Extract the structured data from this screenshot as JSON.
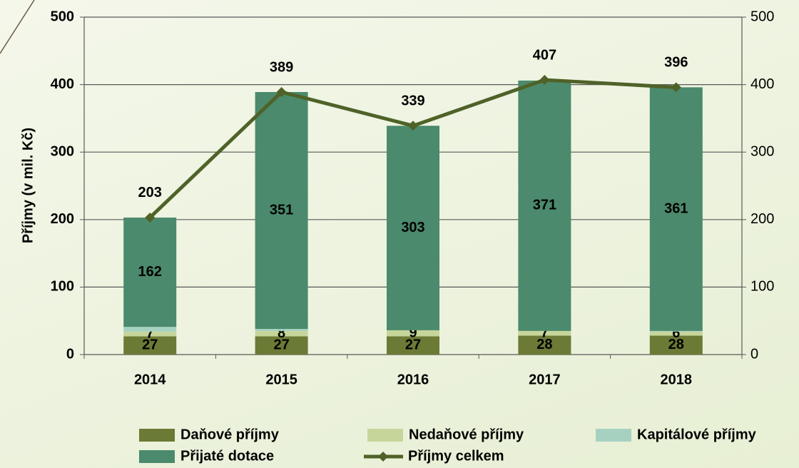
{
  "chart_data": {
    "type": "bar",
    "stacked": true,
    "categories": [
      "2014",
      "2015",
      "2016",
      "2017",
      "2018"
    ],
    "y_axis_label": "Příjmy (v mil. Kč)",
    "ylim": [
      0,
      500
    ],
    "yticks": [
      0,
      100,
      200,
      300,
      400,
      500
    ],
    "y2lim": [
      0,
      500
    ],
    "y2ticks": [
      0,
      100,
      200,
      300,
      400,
      500
    ],
    "grid": true,
    "legend": "bottom",
    "series": [
      {
        "name": "Daňové příjmy",
        "color": "#6b7a35",
        "values": [
          27,
          27,
          27,
          28,
          28
        ]
      },
      {
        "name": "Nedaňové příjmy",
        "color": "#c6d69b",
        "values": [
          7,
          8,
          9,
          7,
          6
        ]
      },
      {
        "name": "Kapitálové příjmy",
        "color": "#a6d1c1",
        "values": [
          7,
          3,
          0,
          0,
          1
        ]
      },
      {
        "name": "Přijaté dotace",
        "color": "#4b8a6c",
        "values": [
          162,
          351,
          303,
          371,
          361
        ]
      },
      {
        "name": "Příjmy celkem",
        "color": "#4f6228",
        "type": "line",
        "axis": "y2",
        "values": [
          203,
          389,
          339,
          407,
          396
        ]
      }
    ]
  }
}
